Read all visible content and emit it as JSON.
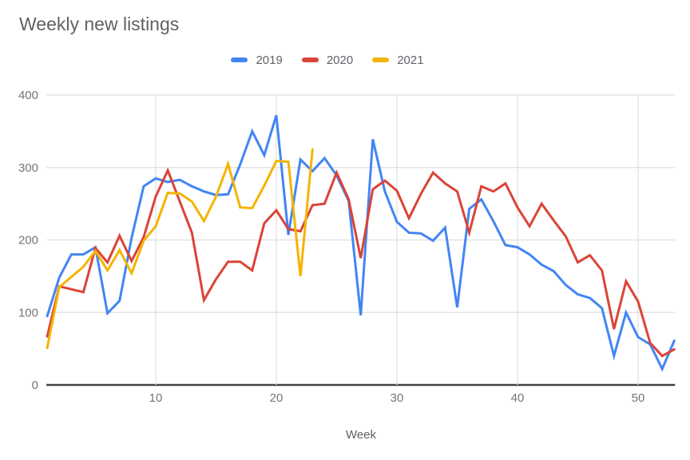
{
  "chart_data": {
    "type": "line",
    "title": "Weekly new listings",
    "xlabel": "Week",
    "x_unit": "week",
    "x_range": [
      1,
      53
    ],
    "ylim": [
      0,
      400
    ],
    "y_ticks": [
      0,
      100,
      200,
      300,
      400
    ],
    "x_ticks": [
      10,
      20,
      30,
      40,
      50
    ],
    "grid": true,
    "legend_position": "top",
    "axis_colors": {
      "tick_label": "#757575",
      "gridline": "#e3e3e3",
      "baseline": "#424242"
    },
    "series": [
      {
        "name": "2019",
        "color": "#4285F4",
        "x_start": 1,
        "values": [
          95,
          148,
          180,
          180,
          190,
          99,
          116,
          203,
          274,
          285,
          280,
          283,
          274,
          267,
          262,
          263,
          304,
          350,
          317,
          372,
          207,
          311,
          295,
          313,
          289,
          254,
          96,
          339,
          267,
          225,
          210,
          209,
          199,
          217,
          107,
          243,
          256,
          226,
          193,
          190,
          180,
          166,
          157,
          138,
          125,
          120,
          106,
          40,
          100,
          66,
          56,
          22,
          61
        ]
      },
      {
        "name": "2020",
        "color": "#DB4437",
        "x_start": 1,
        "values": [
          67,
          136,
          132,
          128,
          189,
          169,
          206,
          171,
          204,
          260,
          296,
          253,
          210,
          117,
          146,
          170,
          170,
          158,
          223,
          241,
          215,
          212,
          248,
          250,
          293,
          256,
          175,
          270,
          282,
          268,
          230,
          264,
          293,
          278,
          267,
          210,
          274,
          267,
          278,
          245,
          219,
          250,
          227,
          205,
          169,
          179,
          158,
          77,
          143,
          115,
          58,
          40,
          49
        ]
      },
      {
        "name": "2021",
        "color": "#F4B400",
        "x_start": 1,
        "values": [
          51,
          135,
          149,
          163,
          185,
          158,
          186,
          154,
          199,
          219,
          265,
          264,
          253,
          226,
          260,
          305,
          245,
          244,
          275,
          309,
          308,
          150,
          325
        ]
      }
    ]
  }
}
